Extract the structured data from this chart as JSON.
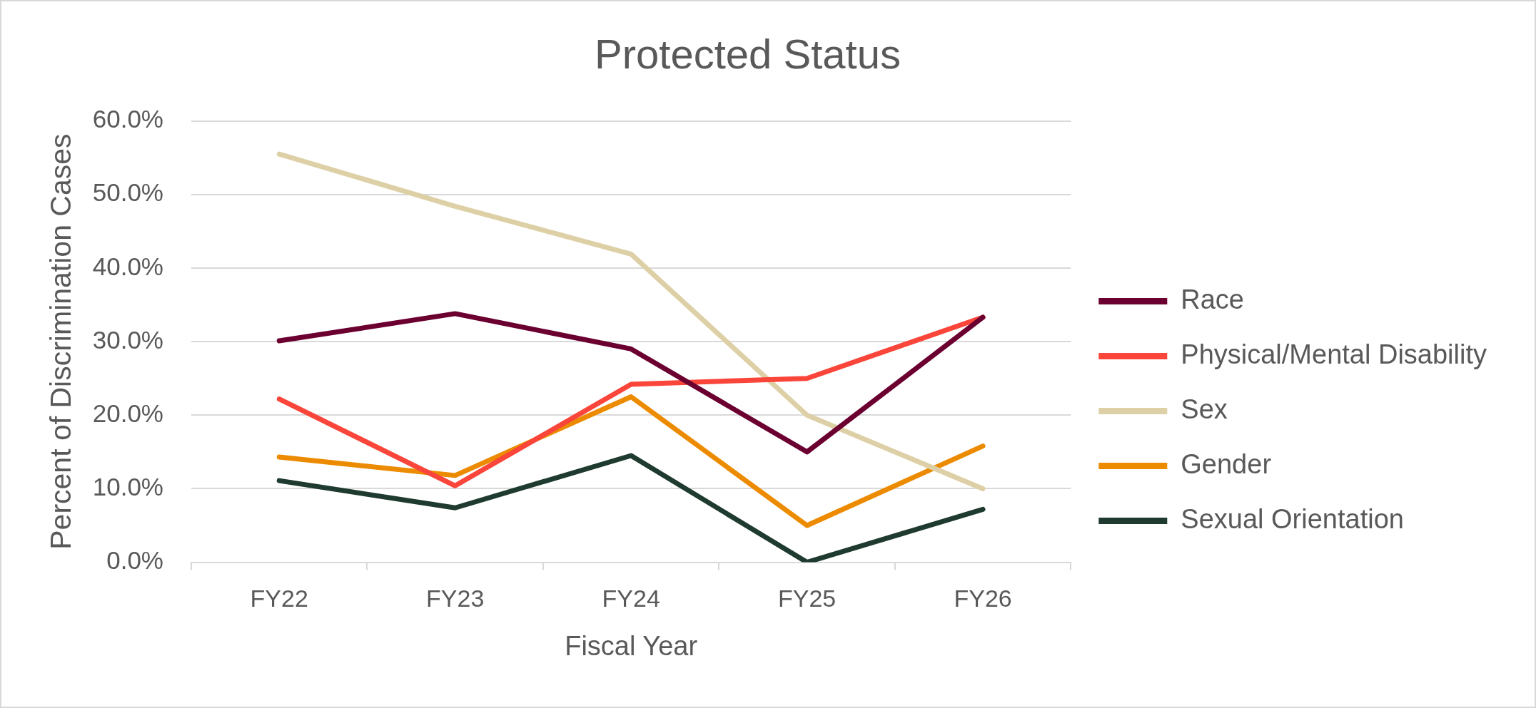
{
  "chart_data": {
    "type": "line",
    "title": "Protected Status",
    "xlabel": "Fiscal Year",
    "ylabel": "Percent of Discrimination Cases",
    "categories": [
      "FY22",
      "FY23",
      "FY24",
      "FY25",
      "FY26"
    ],
    "series": [
      {
        "name": "Race",
        "color": "#6b0030",
        "values": [
          30.1,
          33.8,
          29.0,
          15.0,
          33.3
        ]
      },
      {
        "name": "Physical/Mental Disability",
        "color": "#fa453a",
        "values": [
          22.2,
          10.4,
          24.2,
          25.0,
          33.3
        ]
      },
      {
        "name": "Sex",
        "color": "#ded0a6",
        "values": [
          55.5,
          48.4,
          41.9,
          20.0,
          10.0
        ]
      },
      {
        "name": "Gender",
        "color": "#ec8b00",
        "values": [
          14.3,
          11.8,
          22.5,
          5.0,
          15.8
        ]
      },
      {
        "name": "Sexual Orientation",
        "color": "#1f3a2f",
        "values": [
          11.1,
          7.4,
          14.5,
          0.0,
          7.2
        ]
      }
    ],
    "ylim": [
      0,
      60
    ],
    "yticks": [
      {
        "value": 0,
        "label": "0.0%"
      },
      {
        "value": 10,
        "label": "10.0%"
      },
      {
        "value": 20,
        "label": "20.0%"
      },
      {
        "value": 30,
        "label": "30.0%"
      },
      {
        "value": 40,
        "label": "40.0%"
      },
      {
        "value": 50,
        "label": "50.0%"
      },
      {
        "value": 60,
        "label": "60.0%"
      }
    ],
    "grid": "y",
    "legend": "right",
    "marker": "none",
    "line_style": "solid"
  }
}
